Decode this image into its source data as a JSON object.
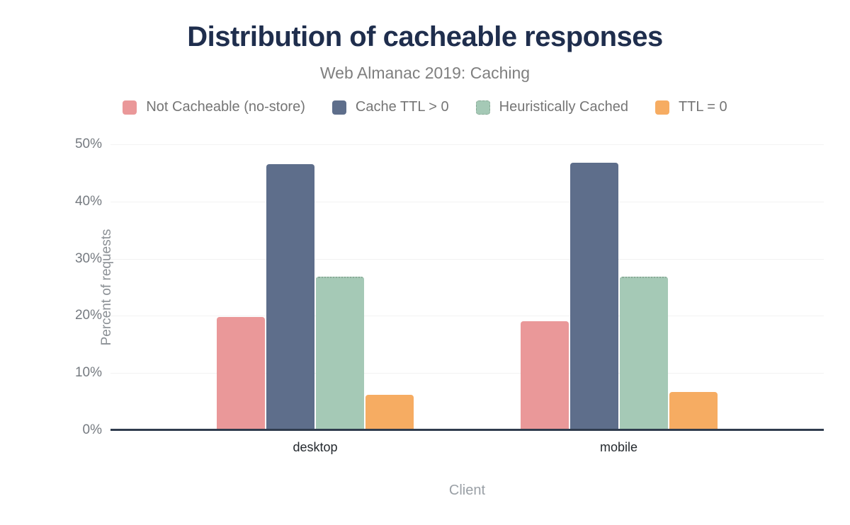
{
  "figure": {
    "title": "Distribution of cacheable responses",
    "subtitle": "Web Almanac 2019: Caching"
  },
  "chart_data": {
    "type": "bar",
    "title": "Distribution of cacheable responses",
    "subtitle": "Web Almanac 2019: Caching",
    "categories": [
      "desktop",
      "mobile"
    ],
    "series": [
      {
        "name": "Not Cacheable (no-store)",
        "color": "#ea9899",
        "values": [
          19.8,
          19.1
        ]
      },
      {
        "name": "Cache TTL > 0",
        "color": "#5e6e8b",
        "values": [
          46.5,
          46.8
        ]
      },
      {
        "name": "Heuristically Cached",
        "color": "#a5c9b6",
        "values": [
          26.8,
          26.8
        ],
        "outline": "dotted"
      },
      {
        "name": "TTL = 0",
        "color": "#f6ac62",
        "values": [
          6.2,
          6.7
        ]
      }
    ],
    "xlabel": "Client",
    "ylabel": "Percent of requests",
    "ylim": [
      0,
      50
    ],
    "y_ticks": [
      {
        "value": 0,
        "label": "0%"
      },
      {
        "value": 10,
        "label": "10%"
      },
      {
        "value": 20,
        "label": "20%"
      },
      {
        "value": 30,
        "label": "30%"
      },
      {
        "value": 40,
        "label": "40%"
      },
      {
        "value": 50,
        "label": "50%"
      }
    ],
    "grid": true,
    "legend_position": "top"
  },
  "colors": {
    "title_text": "#1f2e4d",
    "subtitle_text": "#7f7f7f",
    "legend_text": "#757575",
    "tick_text": "#757a80",
    "axis_title_text": "#9aa0a6",
    "category_text": "#24292e",
    "axis_line": "#303c4e",
    "gridline": "#f2f2f2",
    "background": "#ffffff"
  }
}
